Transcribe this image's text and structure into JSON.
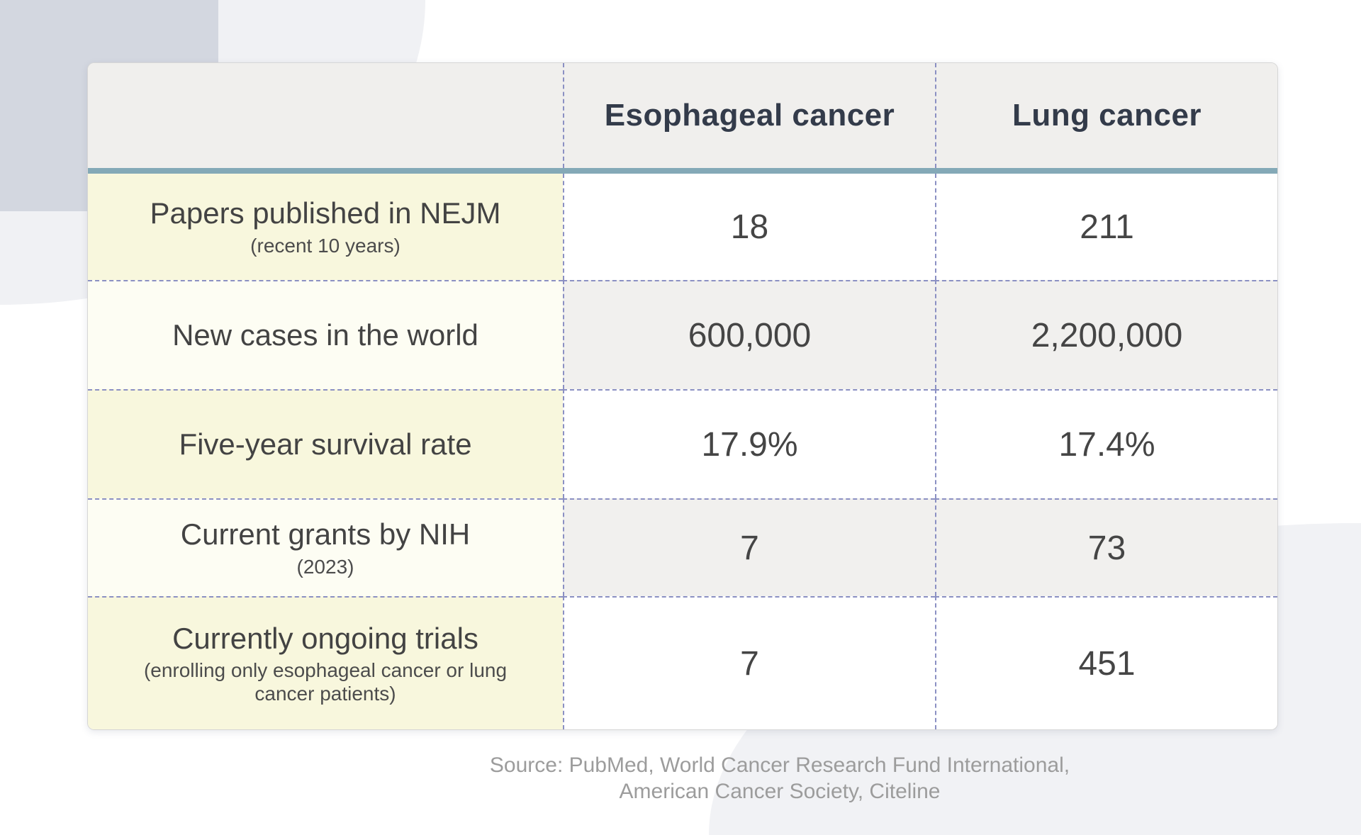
{
  "table": {
    "header": {
      "esophageal": "Esophageal cancer",
      "lung": "Lung cancer"
    },
    "rows": [
      {
        "label": "Papers published in NEJM",
        "sub": "(recent 10 years)",
        "esophageal": "18",
        "lung": "211"
      },
      {
        "label": "New cases in the world",
        "sub": "",
        "esophageal": "600,000",
        "lung": "2,200,000"
      },
      {
        "label": "Five-year survival rate",
        "sub": "",
        "esophageal": "17.9%",
        "lung": "17.4%"
      },
      {
        "label": "Current grants by NIH",
        "sub": "(2023)",
        "esophageal": "7",
        "lung": "73"
      },
      {
        "label": "Currently ongoing trials",
        "sub": "(enrolling only esophageal cancer or lung cancer patients)",
        "esophageal": "7",
        "lung": "451"
      }
    ]
  },
  "source": {
    "line1": "Source: PubMed, World Cancer Research Fund International,",
    "line2": "American Cancer Society, Citeline"
  },
  "colors": {
    "accent_teal": "#84a9b7",
    "row_yellow": "#f8f7dd",
    "row_cream": "#fdfdf3",
    "cell_gray": "#f1f0ee",
    "header_gray": "#f0efed",
    "dashed_border": "#8b90c3",
    "header_text": "#333b4a",
    "body_text": "#434343",
    "source_text": "#9c9c9c",
    "blob_dark": "#d3d7e0",
    "blob_light": "#f1f2f5"
  },
  "chart_data": {
    "type": "table",
    "title": "",
    "columns": [
      "",
      "Esophageal cancer",
      "Lung cancer"
    ],
    "rows": [
      [
        "Papers published in NEJM (recent 10 years)",
        "18",
        "211"
      ],
      [
        "New cases in the world",
        "600,000",
        "2,200,000"
      ],
      [
        "Five-year survival rate",
        "17.9%",
        "17.4%"
      ],
      [
        "Current grants by NIH (2023)",
        "7",
        "73"
      ],
      [
        "Currently ongoing trials (enrolling only esophageal cancer or lung cancer patients)",
        "7",
        "451"
      ]
    ],
    "source": "Source: PubMed, World Cancer Research Fund International, American Cancer Society, Citeline"
  }
}
